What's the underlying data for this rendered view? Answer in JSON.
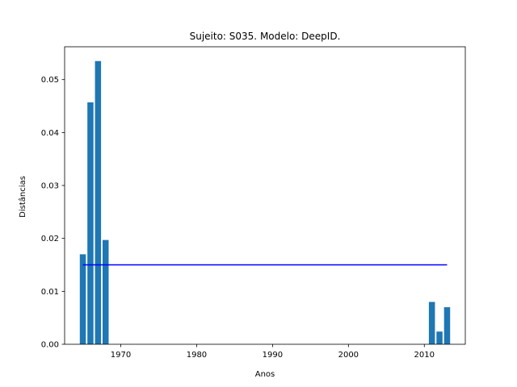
{
  "chart_data": {
    "type": "bar",
    "title": "Sujeito: S035. Modelo: DeepID.",
    "xlabel": "Anos",
    "ylabel": "Distâncias",
    "x": [
      1965,
      1966,
      1967,
      1968,
      2011,
      2012,
      2013
    ],
    "values": [
      0.017,
      0.0457,
      0.0535,
      0.0197,
      0.008,
      0.0024,
      0.007
    ],
    "bar_color": "#1f77b4",
    "xlim": [
      1962.6,
      2015.4
    ],
    "ylim": [
      0,
      0.0562
    ],
    "xticks": [
      1970,
      1980,
      1990,
      2000,
      2010
    ],
    "xtick_labels": [
      "1970",
      "1980",
      "1990",
      "2000",
      "2010"
    ],
    "yticks": [
      0,
      0.01,
      0.02,
      0.03,
      0.04,
      0.05
    ],
    "ytick_labels": [
      "0.00",
      "0.01",
      "0.02",
      "0.03",
      "0.04",
      "0.05"
    ],
    "reference_line": {
      "y": 0.015,
      "x_start": 1965,
      "x_end": 2013,
      "color": "#0000ff"
    },
    "grid": false
  }
}
